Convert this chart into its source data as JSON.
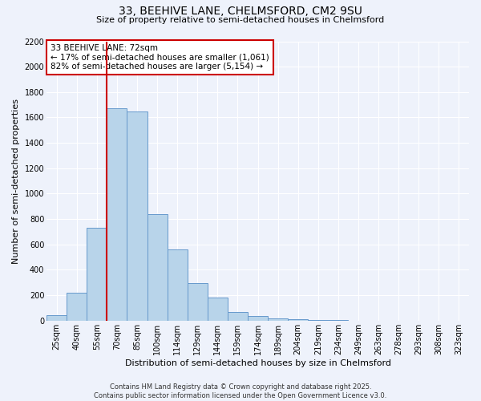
{
  "title": "33, BEEHIVE LANE, CHELMSFORD, CM2 9SU",
  "subtitle": "Size of property relative to semi-detached houses in Chelmsford",
  "xlabel": "Distribution of semi-detached houses by size in Chelmsford",
  "ylabel": "Number of semi-detached properties",
  "bin_labels": [
    "25sqm",
    "40sqm",
    "55sqm",
    "70sqm",
    "85sqm",
    "100sqm",
    "114sqm",
    "129sqm",
    "144sqm",
    "159sqm",
    "174sqm",
    "189sqm",
    "204sqm",
    "219sqm",
    "234sqm",
    "249sqm",
    "263sqm",
    "278sqm",
    "293sqm",
    "308sqm",
    "323sqm"
  ],
  "bar_values": [
    40,
    220,
    730,
    1670,
    1650,
    840,
    560,
    295,
    180,
    70,
    35,
    20,
    10,
    5,
    2,
    1,
    0,
    0,
    0,
    0,
    0
  ],
  "bar_color": "#b8d4ea",
  "bar_edge_color": "#6699cc",
  "marker_line_color": "#cc0000",
  "marker_label": "33 BEEHIVE LANE: 72sqm",
  "annotation_smaller": "← 17% of semi-detached houses are smaller (1,061)",
  "annotation_larger": "82% of semi-detached houses are larger (5,154) →",
  "annotation_box_color": "#ffffff",
  "annotation_box_edge_color": "#cc0000",
  "ylim": [
    0,
    2200
  ],
  "yticks": [
    0,
    200,
    400,
    600,
    800,
    1000,
    1200,
    1400,
    1600,
    1800,
    2000,
    2200
  ],
  "footer_line1": "Contains HM Land Registry data © Crown copyright and database right 2025.",
  "footer_line2": "Contains public sector information licensed under the Open Government Licence v3.0.",
  "background_color": "#eef2fb",
  "grid_color": "#ffffff",
  "title_fontsize": 10,
  "subtitle_fontsize": 8,
  "ylabel_fontsize": 8,
  "xlabel_fontsize": 8,
  "tick_fontsize": 7,
  "footer_fontsize": 6,
  "annot_fontsize": 7.5
}
